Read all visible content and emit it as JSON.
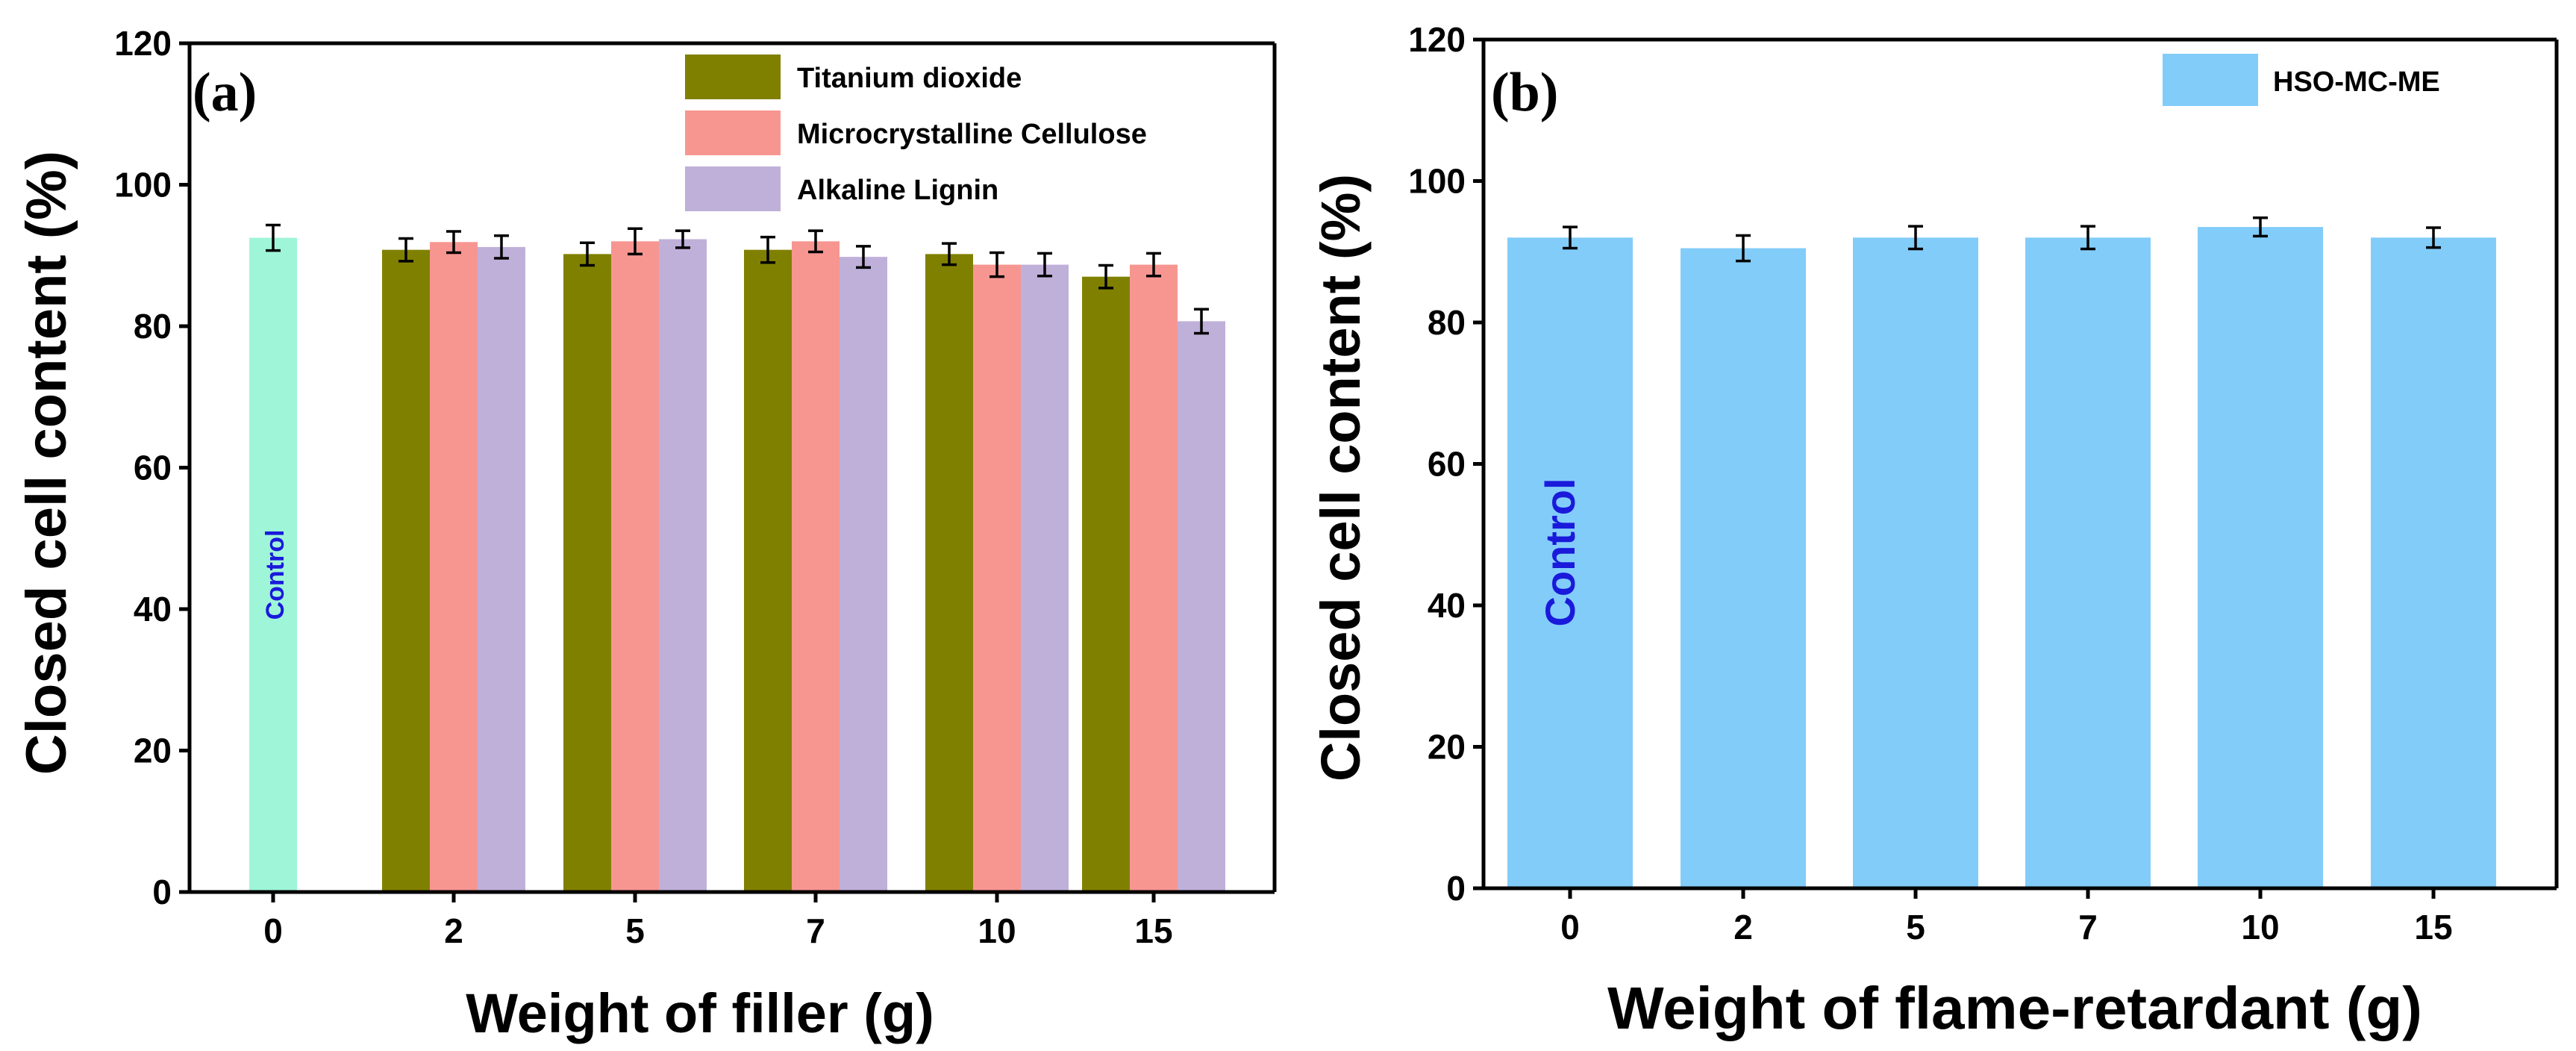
{
  "chart_data": [
    {
      "type": "bar",
      "panel_label": "(a)",
      "categories": [
        "0",
        "2",
        "5",
        "7",
        "10",
        "15"
      ],
      "series": [
        {
          "name": "Control",
          "color": "#9ff5d8",
          "values": [
            92.5,
            null,
            null,
            null,
            null,
            null
          ],
          "errors": [
            1.8,
            null,
            null,
            null,
            null,
            null
          ]
        },
        {
          "name": "Titanium dioxide",
          "color": "#808000",
          "values": [
            null,
            90.8,
            90.2,
            90.8,
            90.2,
            87.0
          ],
          "errors": [
            null,
            1.6,
            1.6,
            1.8,
            1.5,
            1.6
          ]
        },
        {
          "name": "Microcrystalline Cellulose",
          "color": "#f79691",
          "values": [
            null,
            91.9,
            92.0,
            92.0,
            88.7,
            88.7
          ],
          "errors": [
            null,
            1.5,
            1.8,
            1.5,
            1.7,
            1.6
          ]
        },
        {
          "name": "Alkaline Lignin",
          "color": "#bfb0d9",
          "values": [
            null,
            91.2,
            92.3,
            89.8,
            88.7,
            80.7
          ],
          "errors": [
            null,
            1.6,
            1.2,
            1.5,
            1.6,
            1.7
          ]
        }
      ],
      "legend_entries": [
        "Titanium dioxide",
        "Microcrystalline Cellulose",
        "Alkaline Lignin"
      ],
      "annotation": "Control",
      "xlabel": "Weight of filler (g)",
      "ylabel": "Closed cell content (%)",
      "yticks": [
        "0",
        "20",
        "40",
        "60",
        "80",
        "100",
        "120"
      ],
      "ylim": [
        0,
        120
      ],
      "legend_position": "top-right",
      "grid": false
    },
    {
      "type": "bar",
      "panel_label": "(b)",
      "categories": [
        "0",
        "2",
        "5",
        "7",
        "10",
        "15"
      ],
      "series": [
        {
          "name": "HSO-MC-ME",
          "color": "#82ccfa",
          "values": [
            92.0,
            90.5,
            92.0,
            92.0,
            93.5,
            92.0
          ],
          "errors": [
            1.5,
            1.8,
            1.6,
            1.6,
            1.3,
            1.4
          ]
        }
      ],
      "legend_entries": [
        "HSO-MC-ME"
      ],
      "annotation": "Control",
      "xlabel": "Weight of flame-retardant (g)",
      "ylabel": "Closed cell content (%)",
      "yticks": [
        "0",
        "20",
        "40",
        "60",
        "80",
        "100",
        "120"
      ],
      "ylim": [
        0,
        120
      ],
      "legend_position": "top-right",
      "grid": false
    }
  ]
}
